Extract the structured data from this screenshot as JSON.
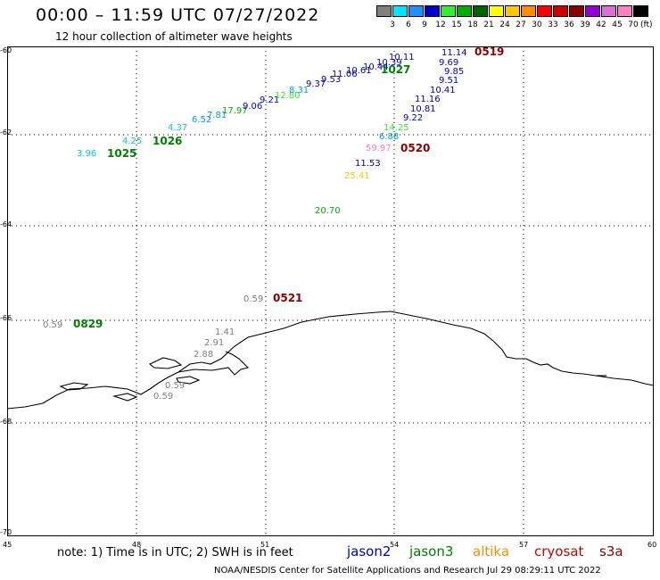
{
  "header": {
    "title": "00:00 – 11:59 UTC 07/27/2022",
    "subtitle": "12 hour collection of altimeter wave heights"
  },
  "legend": {
    "colors": [
      "#808080",
      "#00e5ff",
      "#1e90ff",
      "#0000cd",
      "#33ee33",
      "#00b000",
      "#006400",
      "#ffff00",
      "#ffc800",
      "#ff8c00",
      "#ff0000",
      "#cc0000",
      "#8b0000",
      "#9400d3",
      "#da70d6",
      "#ff80c0",
      "#000000"
    ],
    "labels": [
      "3",
      "6",
      "9",
      "12",
      "15",
      "18",
      "21",
      "24",
      "27",
      "30",
      "33",
      "36",
      "39",
      "42",
      "45",
      "70"
    ],
    "unit": "(ft)"
  },
  "axes": {
    "y_labels": [
      "-60",
      "-62",
      "-64",
      "-66",
      "-68",
      "-70"
    ],
    "x_labels": [
      "45",
      "48",
      "51",
      "54",
      "57",
      "60"
    ]
  },
  "footer": {
    "note": "note: 1) Time is in UTC; 2) SWH is in feet",
    "satellites": [
      {
        "name": "jason2",
        "color": "#0000cd"
      },
      {
        "name": "jason3",
        "color": "#008000"
      },
      {
        "name": "altika",
        "color": "#ff8c00"
      },
      {
        "name": "cryosat",
        "color": "#cc0000"
      },
      {
        "name": "s3a",
        "color": "#8b0000"
      }
    ],
    "credit": "NOAA/NESDIS Center for Satellite Applications and Research   Jul 29 08:29:11 UTC 2022"
  },
  "map": {
    "observations": [
      {
        "text": "3.96",
        "color": "#00c8e0"
      },
      {
        "text": "4.25",
        "color": "#00c8e0"
      },
      {
        "text": "4.37",
        "color": "#00c8e0"
      },
      {
        "text": "6.52",
        "color": "#00a0e0"
      },
      {
        "text": "7.81",
        "color": "#00a0e0"
      },
      {
        "text": "17.97",
        "color": "#00b000"
      },
      {
        "text": "9.06",
        "color": "#0000cd"
      },
      {
        "text": "9.21",
        "color": "#0000cd"
      },
      {
        "text": "12.80",
        "color": "#33ee33"
      },
      {
        "text": "8.31",
        "color": "#00a0e0"
      },
      {
        "text": "9.37",
        "color": "#0000cd"
      },
      {
        "text": "9.53",
        "color": "#0000cd"
      },
      {
        "text": "11.06",
        "color": "#0000cd"
      },
      {
        "text": "10.61",
        "color": "#0000cd"
      },
      {
        "text": "10.44",
        "color": "#0000cd"
      },
      {
        "text": "10.39",
        "color": "#0000cd"
      },
      {
        "text": "10.11",
        "color": "#0000cd"
      },
      {
        "text": "11.14",
        "color": "#0000cd"
      },
      {
        "text": "9.69",
        "color": "#0000cd"
      },
      {
        "text": "9.85",
        "color": "#0000cd"
      },
      {
        "text": "9.51",
        "color": "#0000cd"
      },
      {
        "text": "10.41",
        "color": "#0000cd"
      },
      {
        "text": "11.16",
        "color": "#0000cd"
      },
      {
        "text": "10.81",
        "color": "#0000cd"
      },
      {
        "text": "9.22",
        "color": "#0000cd"
      },
      {
        "text": "14.25",
        "color": "#33ee33"
      },
      {
        "text": "6.88",
        "color": "#00a0e0"
      },
      {
        "text": "59.97",
        "color": "#ff80c0"
      },
      {
        "text": "11.53",
        "color": "#0000cd"
      },
      {
        "text": "25.41",
        "color": "#ffc800"
      },
      {
        "text": "20.70",
        "color": "#00b000"
      },
      {
        "text": "0.59",
        "color": "#808080"
      },
      {
        "text": "0.59",
        "color": "#808080"
      },
      {
        "text": "1.41",
        "color": "#808080"
      },
      {
        "text": "2.91",
        "color": "#808080"
      },
      {
        "text": "2.88",
        "color": "#808080"
      },
      {
        "text": "0.59",
        "color": "#808080"
      },
      {
        "text": "0.59",
        "color": "#808080"
      }
    ],
    "time_labels": [
      {
        "text": "1025",
        "color": "#008000"
      },
      {
        "text": "1026",
        "color": "#008000"
      },
      {
        "text": "1027",
        "color": "#008000"
      },
      {
        "text": "0519",
        "color": "#8b0000"
      },
      {
        "text": "0520",
        "color": "#8b0000"
      },
      {
        "text": "0521",
        "color": "#8b0000"
      },
      {
        "text": "0829",
        "color": "#008000"
      }
    ]
  }
}
